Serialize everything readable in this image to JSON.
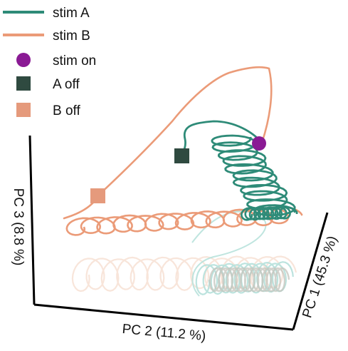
{
  "chart_data": {
    "type": "line",
    "projection": "3d",
    "title": "",
    "axes": {
      "x": {
        "label": "PC 2 (11.2 %)"
      },
      "y": {
        "label": "PC 1 (45.3 %)"
      },
      "z": {
        "label": "PC 3 (8.8 %)"
      }
    },
    "grid": false,
    "legend_position": "top-left",
    "legend": [
      {
        "key": "stimA",
        "label": "stim A",
        "kind": "line",
        "color": "#2e8b78"
      },
      {
        "key": "stimB",
        "label": "stim B",
        "kind": "line",
        "color": "#eb9b78"
      },
      {
        "key": "stimOn",
        "label": "stim on",
        "kind": "circle",
        "color": "#8a1a94"
      },
      {
        "key": "aOff",
        "label": "A off",
        "kind": "square",
        "color": "#2f4a40"
      },
      {
        "key": "bOff",
        "label": "B off",
        "kind": "square",
        "color": "#e59a7c"
      }
    ],
    "series": [
      {
        "name": "stim A",
        "color": "#2e8b78",
        "shadow_color": "#b8e2dc",
        "cycles": 11
      },
      {
        "name": "stim B",
        "color": "#eb9b78",
        "shadow_color": "#f7e2d6",
        "cycles": 14
      }
    ],
    "markers": [
      {
        "name": "stim on",
        "shape": "circle",
        "color": "#8a1a94"
      },
      {
        "name": "A off",
        "shape": "square",
        "color": "#2f4a40"
      },
      {
        "name": "B off",
        "shape": "square",
        "color": "#e59a7c"
      }
    ]
  }
}
